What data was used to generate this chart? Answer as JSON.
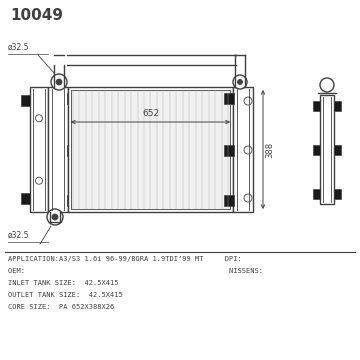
{
  "title": "10049",
  "bg_color": "#ffffff",
  "line_color": "#404040",
  "text_color": "#404040",
  "info_lines": [
    "APPLICATION:A3/S3 1.6i 96-99/BORA 1.9TDI’99 MT     DPI:",
    "OEM:                                                NISSENS:",
    "INLET TANK SIZE:  42.5X415",
    "OUTLET TANK SIZE:  42.5X415",
    "CORE SIZE:  PA 652X388X26"
  ],
  "dim_652": "652",
  "dim_388": "388",
  "dia_label_top": "ø32.5",
  "dia_label_bot": "ø32.5"
}
